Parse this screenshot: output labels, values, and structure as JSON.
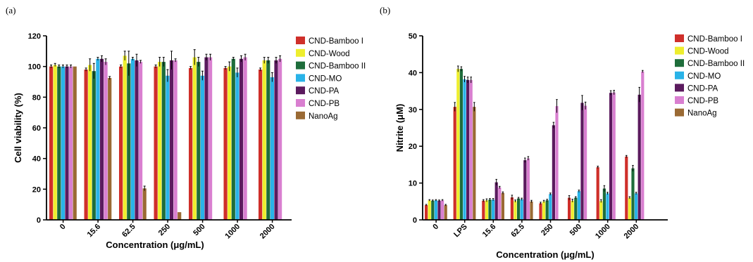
{
  "colors": {
    "CND-Bamboo I": "#cf2f2a",
    "CND-Wood": "#eeee2e",
    "CND-Bamboo II": "#1e6d3b",
    "CND-MO": "#29b3e8",
    "CND-PA": "#5b1a5e",
    "CND-PB": "#d97fd0",
    "NanoAg": "#9a6a34"
  },
  "chart_data": [
    {
      "type": "bar",
      "panel_label": "(a)",
      "xlabel": "Concentration (μg/mL)",
      "ylabel": "Cell viability (%)",
      "ylim": [
        0,
        120
      ],
      "yticks": [
        "0",
        "20",
        "40",
        "60",
        "80",
        "100",
        "120"
      ],
      "categories": [
        "0",
        "15.6",
        "62.5",
        "250",
        "500",
        "1000",
        "2000"
      ],
      "legend": "right",
      "series": [
        {
          "name": "CND-Bamboo I",
          "values": [
            100,
            98,
            100,
            100,
            99,
            99,
            98
          ],
          "errors": [
            1,
            1,
            1,
            1,
            1,
            1,
            1
          ]
        },
        {
          "name": "CND-Wood",
          "values": [
            101,
            101,
            107,
            103,
            106,
            100,
            104
          ],
          "errors": [
            1,
            4,
            3,
            3,
            5,
            3,
            2
          ]
        },
        {
          "name": "CND-Bamboo II",
          "values": [
            100,
            97,
            102,
            103,
            103,
            105,
            104
          ],
          "errors": [
            1,
            5,
            8,
            3,
            3,
            1,
            2
          ]
        },
        {
          "name": "CND-MO",
          "values": [
            100,
            105,
            105,
            94,
            94,
            96,
            93
          ],
          "errors": [
            1,
            1,
            1,
            4,
            3,
            3,
            3
          ]
        },
        {
          "name": "CND-PA",
          "values": [
            100,
            105,
            104,
            104,
            106,
            105,
            104
          ],
          "errors": [
            1,
            2,
            4,
            6,
            2,
            2,
            2
          ]
        },
        {
          "name": "CND-PB",
          "values": [
            100,
            103,
            103,
            104,
            106,
            106,
            105
          ],
          "errors": [
            1,
            2,
            1,
            1,
            2,
            2,
            2
          ]
        },
        {
          "name": "NanoAg",
          "values": [
            100,
            92.5,
            20.5,
            5,
            0,
            0,
            0
          ],
          "errors": [
            0,
            1,
            1.5,
            0,
            0,
            0,
            0
          ]
        }
      ]
    },
    {
      "type": "bar",
      "panel_label": "(b)",
      "xlabel": "Concentration (μg/mL)",
      "ylabel": "Nitrite (μM)",
      "ylim": [
        0,
        50
      ],
      "yticks": [
        "0",
        "10",
        "20",
        "30",
        "40",
        "50"
      ],
      "categories": [
        "0",
        "LPS",
        "15.6",
        "62.5",
        "250",
        "500",
        "1000",
        "2000"
      ],
      "legend": "right",
      "series": [
        {
          "name": "CND-Bamboo I",
          "values": [
            4,
            30.7,
            5.2,
            6.1,
            4.5,
            6.0,
            14.3,
            17.2
          ],
          "errors": [
            0.2,
            1.2,
            0.3,
            0.6,
            0.3,
            0.6,
            0.3,
            0.3
          ]
        },
        {
          "name": "CND-Wood",
          "values": [
            5.3,
            41,
            5.3,
            5.1,
            5.0,
            5.2,
            5.1,
            6.0
          ],
          "errors": [
            0.2,
            0.8,
            0.4,
            0.3,
            0.3,
            0.4,
            0.4,
            0.3
          ]
        },
        {
          "name": "CND-Bamboo II",
          "values": [
            5.2,
            41,
            5.5,
            5.8,
            5.3,
            6.0,
            8.5,
            14.0
          ],
          "errors": [
            0.2,
            0.6,
            0.3,
            0.3,
            0.3,
            0.3,
            0.8,
            0.8
          ]
        },
        {
          "name": "CND-MO",
          "values": [
            5.3,
            38.2,
            5.5,
            5.6,
            7.0,
            7.8,
            7.2,
            7.2
          ],
          "errors": [
            0.2,
            0.8,
            0.3,
            0.3,
            0.3,
            0.3,
            0.3,
            0.3
          ]
        },
        {
          "name": "CND-PA",
          "values": [
            5.2,
            38.0,
            10.2,
            16.2,
            25.7,
            31.8,
            34.5,
            34.0
          ],
          "errors": [
            0.2,
            0.8,
            0.8,
            0.6,
            0.8,
            2.0,
            0.6,
            2.0
          ]
        },
        {
          "name": "CND-PB",
          "values": [
            5.3,
            38.0,
            8.8,
            16.7,
            30.9,
            31.0,
            34.6,
            40.3
          ],
          "errors": [
            0.2,
            0.8,
            0.3,
            0.5,
            1.8,
            1.0,
            0.6,
            0.3
          ]
        },
        {
          "name": "NanoAg",
          "values": [
            4.0,
            30.7,
            7.3,
            5.0,
            0,
            0,
            0,
            0
          ],
          "errors": [
            0.2,
            1.2,
            0.3,
            0.3,
            0,
            0,
            0,
            0
          ]
        }
      ]
    }
  ]
}
